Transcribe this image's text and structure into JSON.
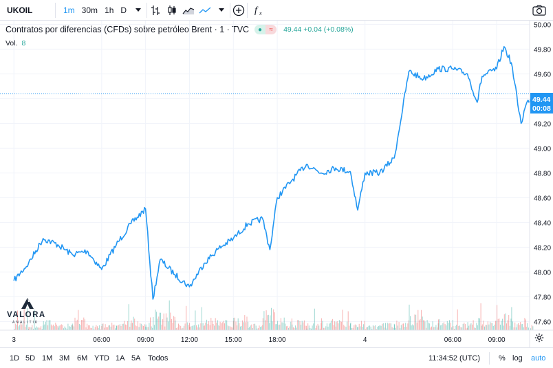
{
  "toolbar": {
    "symbol": "UKOIL",
    "intervals": [
      "1m",
      "30m",
      "1h",
      "D"
    ],
    "active_interval": "1m"
  },
  "legend": {
    "title": "Contratos por diferencias (CFDs) sobre petróleo Brent · 1 · TVC",
    "last_value": "49.44 +0.04 (+0.08%)",
    "volume_label": "Vol.",
    "volume_value": "8"
  },
  "logo": {
    "name": "VALORA",
    "sub": "ANALITIK"
  },
  "price_badge": {
    "price": "49.44",
    "countdown": "00:08"
  },
  "bottombar": {
    "ranges": [
      "1D",
      "5D",
      "1M",
      "3M",
      "6M",
      "YTD",
      "1A",
      "5A",
      "Todos"
    ],
    "clock": "11:34:52 (UTC)",
    "percent": "%",
    "log": "log",
    "auto": "auto"
  },
  "colors": {
    "line": "#2196f3",
    "up": "#26a69a",
    "down": "#ef5350",
    "grid": "#f0f3fa"
  },
  "chart_data": {
    "type": "line",
    "x_ticks": [
      "3",
      "06:00",
      "09:00",
      "12:00",
      "15:00",
      "18:00",
      "4",
      "06:00",
      "09:00"
    ],
    "y_ticks": [
      "47.60",
      "47.80",
      "48.00",
      "48.20",
      "48.40",
      "48.60",
      "48.80",
      "49.00",
      "49.20",
      "49.40",
      "49.60",
      "49.80",
      "50.00"
    ],
    "ylim": [
      47.53,
      50.03
    ],
    "grid": true,
    "x": [
      "3 00:00",
      "3 01:00",
      "3 02:00",
      "3 03:00",
      "3 04:00",
      "3 05:00",
      "3 06:00",
      "3 07:00",
      "3 08:00",
      "3 09:00",
      "3 09:30",
      "3 10:00",
      "3 11:00",
      "3 12:00",
      "3 13:00",
      "3 14:00",
      "3 15:00",
      "3 16:00",
      "3 17:00",
      "3 17:30",
      "3 18:00",
      "3 19:00",
      "3 20:00",
      "3 21:00",
      "3 22:00",
      "3 23:00",
      "3 23:30",
      "4 00:00",
      "4 01:00",
      "4 02:00",
      "4 03:00",
      "4 04:00",
      "4 05:00",
      "4 06:00",
      "4 07:00",
      "4 07:40",
      "4 08:00",
      "4 09:00",
      "4 09:30",
      "4 10:00",
      "4 10:40",
      "4 11:00",
      "4 11:30"
    ],
    "series": [
      {
        "values": [
          47.93,
          48.07,
          48.27,
          48.22,
          48.14,
          48.17,
          48.02,
          48.22,
          48.39,
          48.51,
          47.78,
          48.1,
          47.98,
          47.88,
          48.07,
          48.19,
          48.27,
          48.39,
          48.43,
          48.18,
          48.6,
          48.74,
          48.87,
          48.8,
          48.84,
          48.81,
          48.5,
          48.8,
          48.8,
          48.92,
          49.62,
          49.56,
          49.64,
          49.64,
          49.6,
          49.37,
          49.58,
          49.64,
          49.82,
          49.69,
          49.2,
          49.35,
          49.44
        ]
      }
    ],
    "volumes": [
      3,
      2,
      4,
      3,
      5,
      2,
      3,
      4,
      6,
      5,
      8,
      7,
      4,
      3,
      5,
      4,
      6,
      3,
      8,
      9,
      5,
      4,
      3,
      5,
      4,
      3,
      4,
      2,
      3,
      4,
      8,
      4,
      5,
      3,
      4,
      6,
      4,
      5,
      7,
      4,
      5,
      3,
      8
    ]
  }
}
